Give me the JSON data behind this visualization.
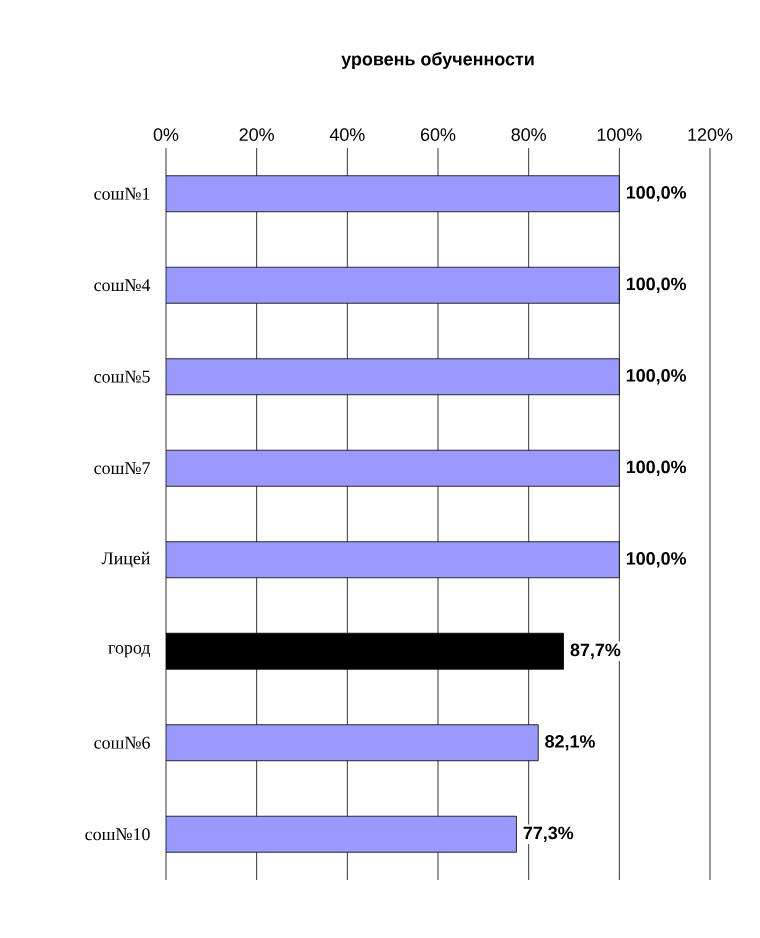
{
  "chart_data": {
    "type": "bar",
    "orientation": "horizontal",
    "title": "уровень обученности",
    "categories": [
      "сош№1",
      "сош№4",
      "сош№5",
      "сош№7",
      "Лицей",
      "город",
      "сош№6",
      "сош№10"
    ],
    "values": [
      100,
      100,
      100,
      100,
      100,
      87.7,
      82.1,
      77.3
    ],
    "colors": [
      "#9999ff",
      "#9999ff",
      "#9999ff",
      "#9999ff",
      "#9999ff",
      "#000000",
      "#9999ff",
      "#9999ff"
    ],
    "value_labels": [
      "100,0%",
      "100,0%",
      "100,0%",
      "100,0%",
      "100,0%",
      "87,7%",
      "82,1%",
      "77,3%"
    ],
    "xlim": [
      0,
      120
    ],
    "xticks": [
      {
        "value": 0,
        "label": "0%"
      },
      {
        "value": 20,
        "label": "20%"
      },
      {
        "value": 40,
        "label": "40%"
      },
      {
        "value": 60,
        "label": "60%"
      },
      {
        "value": 80,
        "label": "80%"
      },
      {
        "value": 100,
        "label": "100%"
      },
      {
        "value": 120,
        "label": "120%"
      }
    ],
    "grid": "x"
  }
}
